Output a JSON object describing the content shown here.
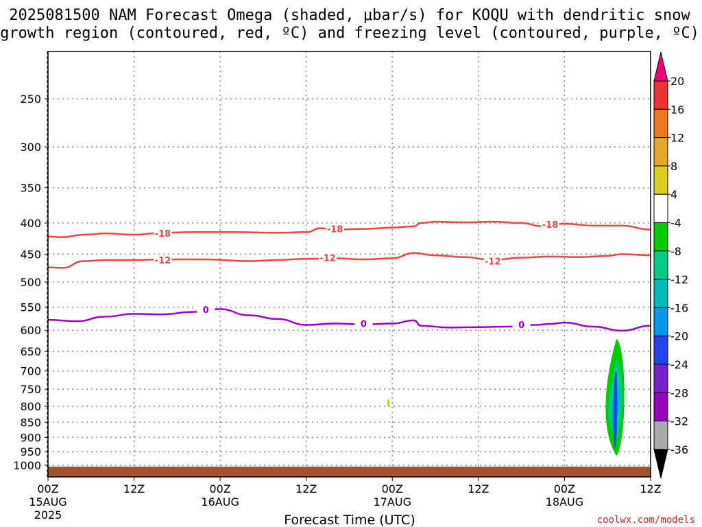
{
  "title": {
    "line1": "2025081500 NAM Forecast Omega (shaded, μbar/s) for KOQU with dendritic snow",
    "line2": "growth region (contoured, red, ºC) and freezing level (contoured, purple, ºC)"
  },
  "credit": "coolwx.com/models",
  "colors": {
    "dgz_contour": "#ee4444",
    "freezing_contour": "#9900cc",
    "ground": "#a0522d",
    "grid": "#888888"
  },
  "chart_data": {
    "type": "heatmap",
    "xlabel": "Forecast Time (UTC)",
    "ylabel": "",
    "x_range_hours": [
      0,
      84
    ],
    "y_scale": "log-pressure",
    "ylim": [
      1050,
      200
    ],
    "y_ticks": [
      250,
      300,
      350,
      400,
      450,
      500,
      550,
      600,
      650,
      700,
      750,
      800,
      850,
      900,
      950,
      1000
    ],
    "x_ticks": [
      {
        "hour": 0,
        "time": "00Z",
        "date": "15AUG",
        "year": "2025"
      },
      {
        "hour": 12,
        "time": "12Z",
        "date": "",
        "year": ""
      },
      {
        "hour": 24,
        "time": "00Z",
        "date": "16AUG",
        "year": ""
      },
      {
        "hour": 36,
        "time": "12Z",
        "date": "",
        "year": ""
      },
      {
        "hour": 48,
        "time": "00Z",
        "date": "17AUG",
        "year": ""
      },
      {
        "hour": 60,
        "time": "12Z",
        "date": "",
        "year": ""
      },
      {
        "hour": 72,
        "time": "00Z",
        "date": "18AUG",
        "year": ""
      },
      {
        "hour": 84,
        "time": "12Z",
        "date": "",
        "year": ""
      }
    ],
    "grid": true,
    "contours": [
      {
        "level": "-18",
        "color": "dgz_contour",
        "points": [
          [
            0,
            421
          ],
          [
            2,
            422
          ],
          [
            5,
            418
          ],
          [
            8,
            416
          ],
          [
            12,
            418
          ],
          [
            16,
            415
          ],
          [
            20,
            414
          ],
          [
            26,
            414
          ],
          [
            32,
            415
          ],
          [
            36,
            414
          ],
          [
            38,
            408
          ],
          [
            40,
            410
          ],
          [
            44,
            409
          ],
          [
            48,
            407
          ],
          [
            51,
            405
          ],
          [
            52,
            400
          ],
          [
            54,
            398
          ],
          [
            58,
            399
          ],
          [
            62,
            398
          ],
          [
            66,
            400
          ],
          [
            69,
            405
          ],
          [
            72,
            401
          ],
          [
            76,
            404
          ],
          [
            80,
            404
          ],
          [
            84,
            410
          ]
        ],
        "labels": [
          [
            16,
            416
          ],
          [
            40,
            409
          ],
          [
            70,
            402
          ]
        ]
      },
      {
        "level": "-12",
        "color": "dgz_contour",
        "points": [
          [
            0,
            473
          ],
          [
            2,
            474
          ],
          [
            5,
            462
          ],
          [
            8,
            460
          ],
          [
            12,
            460
          ],
          [
            16,
            459
          ],
          [
            22,
            459
          ],
          [
            28,
            462
          ],
          [
            32,
            460
          ],
          [
            36,
            458
          ],
          [
            40,
            457
          ],
          [
            44,
            459
          ],
          [
            48,
            457
          ],
          [
            51,
            448
          ],
          [
            54,
            452
          ],
          [
            58,
            455
          ],
          [
            62,
            460
          ],
          [
            66,
            456
          ],
          [
            70,
            454
          ],
          [
            74,
            455
          ],
          [
            78,
            453
          ],
          [
            80,
            450
          ],
          [
            84,
            452
          ]
        ],
        "labels": [
          [
            16,
            460
          ],
          [
            39,
            456
          ],
          [
            62,
            462
          ]
        ]
      },
      {
        "level": "0",
        "color": "freezing_contour",
        "points": [
          [
            0,
            577
          ],
          [
            4,
            580
          ],
          [
            8,
            570
          ],
          [
            12,
            564
          ],
          [
            16,
            565
          ],
          [
            20,
            560
          ],
          [
            24,
            554
          ],
          [
            28,
            567
          ],
          [
            32,
            575
          ],
          [
            36,
            588
          ],
          [
            40,
            585
          ],
          [
            44,
            587
          ],
          [
            48,
            585
          ],
          [
            51,
            578
          ],
          [
            52,
            590
          ],
          [
            56,
            594
          ],
          [
            60,
            593
          ],
          [
            64,
            592
          ],
          [
            68,
            588
          ],
          [
            70,
            586
          ],
          [
            72,
            583
          ],
          [
            76,
            592
          ],
          [
            80,
            601
          ],
          [
            84,
            590
          ]
        ],
        "labels": [
          [
            22,
            555
          ],
          [
            44,
            585
          ],
          [
            66,
            587
          ]
        ]
      }
    ],
    "omega_features": [
      {
        "value_range": [
          -32,
          -4
        ],
        "description_hours": [
          77.4,
          80.7
        ],
        "pressure_range": [
          620,
          965
        ]
      },
      {
        "value_range": [
          4,
          8
        ],
        "description_hours": [
          47.3,
          47.6
        ],
        "pressure_range": [
          780,
          800
        ]
      }
    ],
    "colorbar": {
      "labels": [
        "20",
        "16",
        "12",
        "8",
        "4",
        "-4",
        "-8",
        "-12",
        "-16",
        "-20",
        "-24",
        "-28",
        "-32",
        "-36"
      ],
      "colors": [
        "#ee0077",
        "#ee3333",
        "#ee7722",
        "#e6a82a",
        "#ddcc22",
        "#ffffff",
        "#00cc00",
        "#00cc88",
        "#00bbbb",
        "#0099ee",
        "#2244ee",
        "#7722cc",
        "#9900bb",
        "#aaaaaa",
        "#000000"
      ]
    }
  }
}
